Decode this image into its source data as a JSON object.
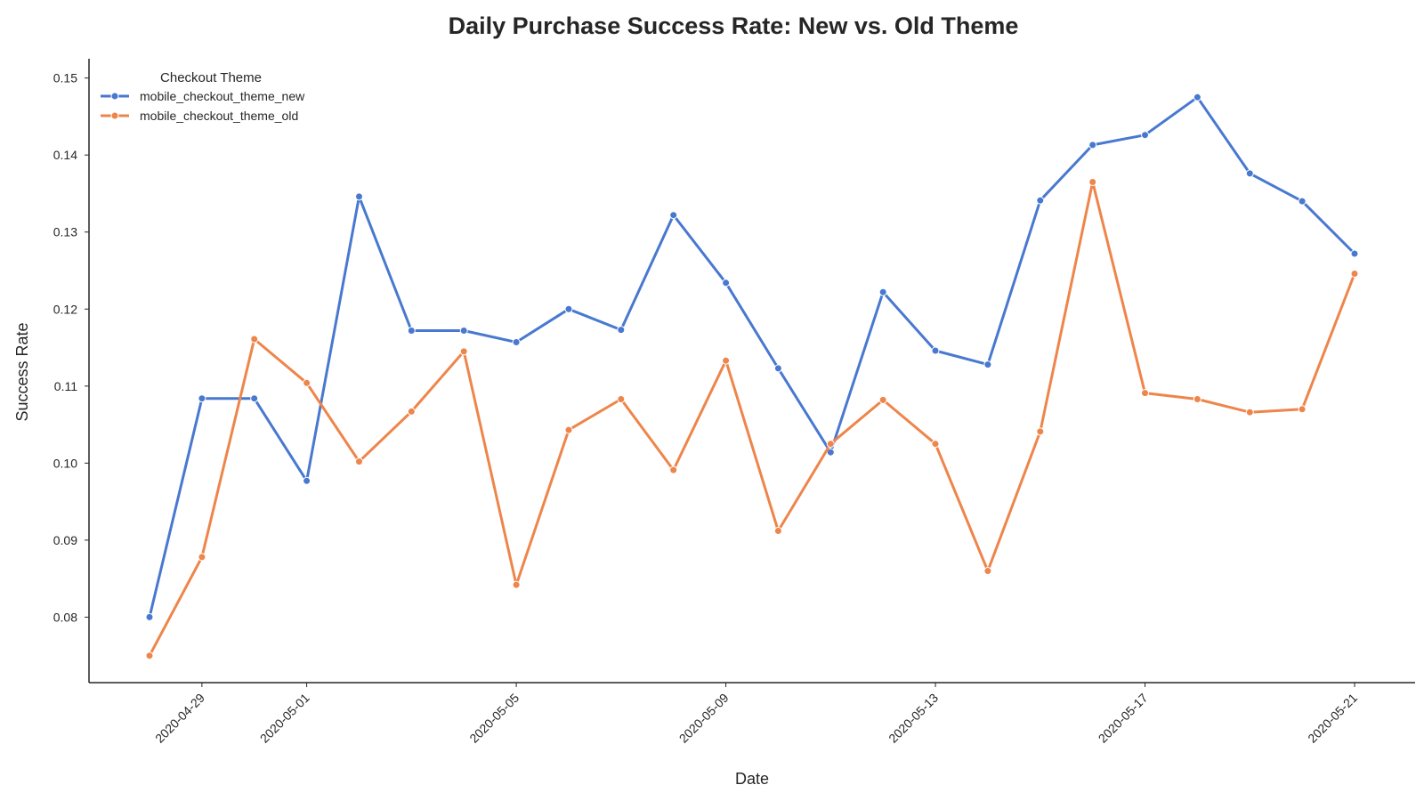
{
  "chart_data": {
    "type": "line",
    "title": "Daily Purchase Success Rate: New vs. Old Theme",
    "xlabel": "Date",
    "ylabel": "Success Rate",
    "x": [
      "2020-04-28",
      "2020-04-29",
      "2020-04-30",
      "2020-05-01",
      "2020-05-02",
      "2020-05-03",
      "2020-05-04",
      "2020-05-05",
      "2020-05-06",
      "2020-05-07",
      "2020-05-08",
      "2020-05-09",
      "2020-05-10",
      "2020-05-11",
      "2020-05-12",
      "2020-05-13",
      "2020-05-14",
      "2020-05-15",
      "2020-05-16",
      "2020-05-17",
      "2020-05-18",
      "2020-05-19",
      "2020-05-20",
      "2020-05-21"
    ],
    "xticks": [
      "2020-04-29",
      "2020-05-01",
      "2020-05-05",
      "2020-05-09",
      "2020-05-13",
      "2020-05-17",
      "2020-05-21"
    ],
    "yticks": [
      0.08,
      0.09,
      0.1,
      0.11,
      0.12,
      0.13,
      0.14,
      0.15
    ],
    "ytick_labels": [
      "0.08",
      "0.09",
      "0.10",
      "0.11",
      "0.12",
      "0.13",
      "0.14",
      "0.15"
    ],
    "ylim": [
      0.0715,
      0.1525
    ],
    "grid": false,
    "legend": {
      "title": "Checkout Theme",
      "placement": "top-left"
    },
    "series": [
      {
        "name": "mobile_checkout_theme_new",
        "color": "#4878d0",
        "values": [
          0.08,
          0.1084,
          0.1084,
          0.0977,
          0.1346,
          0.1172,
          0.1172,
          0.1157,
          0.12,
          0.1173,
          0.1322,
          0.1234,
          0.1123,
          0.1014,
          0.1222,
          0.1146,
          0.1128,
          0.1341,
          0.1413,
          0.1426,
          0.1475,
          0.1376,
          0.134,
          0.1272
        ]
      },
      {
        "name": "mobile_checkout_theme_old",
        "color": "#ee854a",
        "values": [
          0.075,
          0.0878,
          0.1161,
          0.1104,
          0.1002,
          0.1067,
          0.1145,
          0.0842,
          0.1043,
          0.1083,
          0.0991,
          0.1133,
          0.0912,
          0.1025,
          0.1082,
          0.1025,
          0.086,
          0.1041,
          0.1365,
          0.1091,
          0.1083,
          0.1066,
          0.107,
          0.1246
        ]
      }
    ]
  }
}
